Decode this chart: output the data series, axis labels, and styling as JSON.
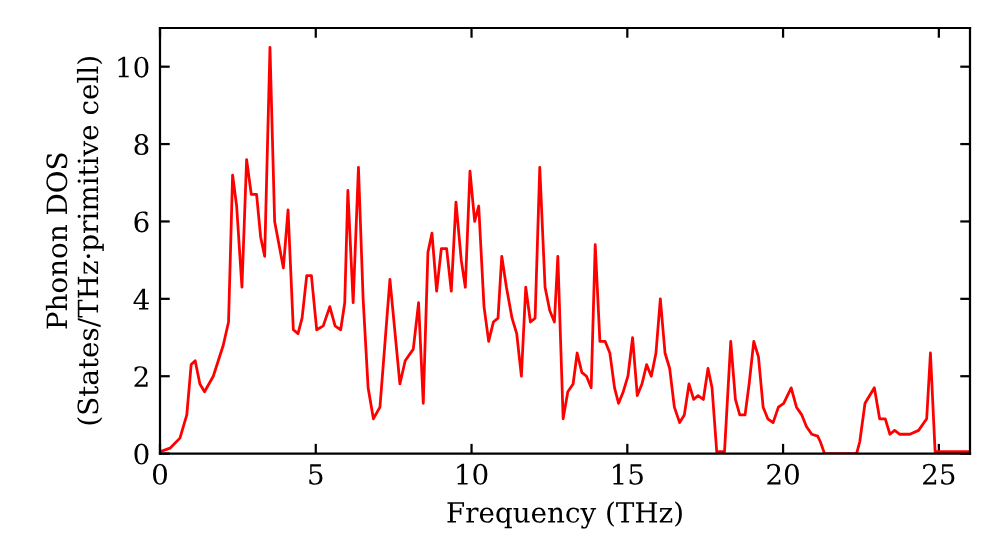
{
  "chart_data": {
    "type": "line",
    "xlabel": "Frequency (THz)",
    "ylabel": "Phonon DOS\n(States/THz·primitive cell)",
    "xlim": [
      0,
      26
    ],
    "ylim": [
      0,
      11
    ],
    "xticks": [
      0,
      5,
      10,
      15,
      20,
      25
    ],
    "yticks": [
      0,
      2,
      4,
      6,
      8,
      10
    ],
    "grid": false,
    "marker": "none",
    "line_style": "solid",
    "series": [
      {
        "color": "#ff0000",
        "x": [
          0,
          0.32,
          0.64,
          0.86,
          1.0,
          1.13,
          1.28,
          1.43,
          1.71,
          2.03,
          2.2,
          2.33,
          2.46,
          2.63,
          2.78,
          2.93,
          3.1,
          3.23,
          3.36,
          3.53,
          3.68,
          3.96,
          4.11,
          4.28,
          4.43,
          4.56,
          4.71,
          4.86,
          5.03,
          5.24,
          5.45,
          5.62,
          5.8,
          5.93,
          6.03,
          6.2,
          6.37,
          6.52,
          6.68,
          6.85,
          7.06,
          7.38,
          7.7,
          7.87,
          8.13,
          8.3,
          8.45,
          8.6,
          8.73,
          8.88,
          9.03,
          9.2,
          9.35,
          9.5,
          9.67,
          9.8,
          9.95,
          10.1,
          10.23,
          10.4,
          10.55,
          10.7,
          10.85,
          10.97,
          11.12,
          11.3,
          11.45,
          11.6,
          11.74,
          11.89,
          12.04,
          12.19,
          12.36,
          12.51,
          12.66,
          12.77,
          12.94,
          13.09,
          13.26,
          13.39,
          13.54,
          13.69,
          13.84,
          13.97,
          14.12,
          14.29,
          14.44,
          14.59,
          14.72,
          14.87,
          15.02,
          15.17,
          15.32,
          15.47,
          15.62,
          15.77,
          15.92,
          16.06,
          16.21,
          16.36,
          16.51,
          16.68,
          16.83,
          16.98,
          17.13,
          17.27,
          17.44,
          17.59,
          17.72,
          17.87,
          18.12,
          18.32,
          18.47,
          18.61,
          18.78,
          18.91,
          19.06,
          19.21,
          19.36,
          19.51,
          19.68,
          19.85,
          20.02,
          20.26,
          20.43,
          20.6,
          20.75,
          20.92,
          21.11,
          21.2,
          21.33,
          22.36,
          22.46,
          22.63,
          22.93,
          23.1,
          23.28,
          23.43,
          23.58,
          23.75,
          24.07,
          24.35,
          24.61,
          24.73,
          24.88,
          26
        ],
        "values": [
          0.05,
          0.14,
          0.4,
          1.0,
          2.3,
          2.4,
          1.8,
          1.6,
          2.0,
          2.8,
          3.4,
          7.2,
          6.4,
          4.3,
          7.6,
          6.7,
          6.7,
          5.6,
          5.1,
          10.5,
          6.0,
          4.8,
          6.3,
          3.2,
          3.1,
          3.5,
          4.6,
          4.6,
          3.2,
          3.3,
          3.8,
          3.3,
          3.2,
          3.9,
          6.8,
          3.9,
          7.4,
          4.0,
          1.7,
          0.9,
          1.2,
          4.5,
          1.8,
          2.4,
          2.7,
          3.9,
          1.3,
          5.2,
          5.7,
          4.2,
          5.3,
          5.3,
          4.2,
          6.5,
          5.0,
          4.3,
          7.3,
          6.0,
          6.4,
          3.8,
          2.9,
          3.4,
          3.5,
          5.1,
          4.3,
          3.5,
          3.1,
          2.0,
          4.3,
          3.4,
          3.5,
          7.4,
          4.3,
          3.7,
          3.4,
          5.1,
          0.9,
          1.6,
          1.8,
          2.6,
          2.1,
          2.0,
          1.7,
          5.4,
          2.9,
          2.9,
          2.6,
          1.7,
          1.3,
          1.6,
          2.0,
          3.0,
          1.5,
          1.8,
          2.3,
          2.0,
          2.6,
          4.0,
          2.6,
          2.2,
          1.2,
          0.8,
          1.0,
          1.8,
          1.4,
          1.5,
          1.4,
          2.2,
          1.7,
          0.05,
          0.05,
          2.9,
          1.4,
          1.0,
          1.0,
          1.8,
          2.9,
          2.5,
          1.2,
          0.9,
          0.8,
          1.2,
          1.3,
          1.7,
          1.2,
          1.0,
          0.7,
          0.5,
          0.45,
          0.3,
          0,
          0,
          0.3,
          1.3,
          1.7,
          0.9,
          0.9,
          0.5,
          0.6,
          0.5,
          0.5,
          0.6,
          0.9,
          2.6,
          0.05,
          0.05
        ]
      }
    ]
  }
}
